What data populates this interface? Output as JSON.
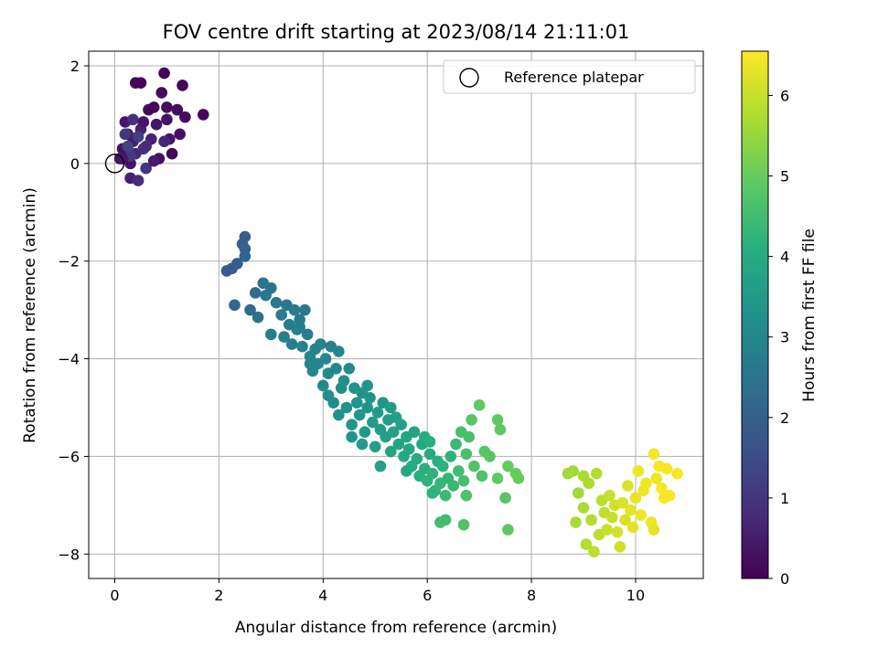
{
  "chart_data": {
    "type": "scatter",
    "title": "FOV centre drift starting at 2023/08/14 21:11:01",
    "xlabel": "Angular distance from reference (arcmin)",
    "ylabel": "Rotation from reference (arcmin)",
    "colorbar_label": "Hours from first FF file",
    "xlim": [
      -0.5,
      11.3
    ],
    "ylim": [
      -8.5,
      2.3
    ],
    "clim": [
      0,
      6.55
    ],
    "x_ticks": [
      0,
      2,
      4,
      6,
      8,
      10
    ],
    "y_ticks": [
      -8,
      -6,
      -4,
      -2,
      0,
      2
    ],
    "c_ticks": [
      0,
      1,
      2,
      3,
      4,
      5,
      6
    ],
    "x_tick_labels": [
      "0",
      "2",
      "4",
      "6",
      "8",
      "10"
    ],
    "y_tick_labels": [
      "−8",
      "−6",
      "−4",
      "−2",
      "0",
      "2"
    ],
    "c_tick_labels": [
      "0",
      "1",
      "2",
      "3",
      "4",
      "5",
      "6"
    ],
    "grid": true,
    "colormap": "viridis",
    "legend": {
      "position": "top-right",
      "entries": [
        {
          "label": "Reference platepar",
          "marker": "open-circle"
        }
      ]
    },
    "reference_point": {
      "x": 0,
      "y": 0
    },
    "points": [
      [
        0.1,
        0.1,
        0.2
      ],
      [
        0.15,
        0.3,
        0.3
      ],
      [
        0.2,
        0.85,
        0.4
      ],
      [
        0.25,
        0.6,
        0.5
      ],
      [
        0.3,
        0.0,
        0.3
      ],
      [
        0.3,
        -0.3,
        0.6
      ],
      [
        0.35,
        0.45,
        0.5
      ],
      [
        0.4,
        1.65,
        0.1
      ],
      [
        0.4,
        0.2,
        0.7
      ],
      [
        0.45,
        -0.35,
        0.8
      ],
      [
        0.5,
        1.65,
        0.1
      ],
      [
        0.5,
        0.7,
        0.6
      ],
      [
        0.55,
        0.3,
        0.9
      ],
      [
        0.6,
        -0.1,
        1.0
      ],
      [
        0.65,
        1.1,
        0.2
      ],
      [
        0.7,
        0.5,
        0.6
      ],
      [
        0.75,
        1.15,
        0.1
      ],
      [
        0.8,
        0.8,
        0.4
      ],
      [
        0.85,
        0.1,
        0.3
      ],
      [
        0.9,
        1.45,
        0.2
      ],
      [
        0.95,
        1.85,
        0.0
      ],
      [
        1.0,
        0.9,
        0.3
      ],
      [
        1.05,
        0.5,
        0.4
      ],
      [
        1.1,
        0.2,
        0.1
      ],
      [
        1.2,
        1.1,
        0.2
      ],
      [
        1.25,
        0.6,
        0.3
      ],
      [
        1.3,
        1.6,
        0.1
      ],
      [
        1.35,
        0.95,
        0.2
      ],
      [
        1.7,
        1.0,
        0.15
      ],
      [
        0.2,
        0.6,
        1.0
      ],
      [
        0.3,
        0.15,
        1.1
      ],
      [
        0.35,
        0.9,
        0.9
      ],
      [
        0.45,
        0.55,
        1.2
      ],
      [
        0.25,
        0.35,
        1.3
      ],
      [
        0.6,
        0.35,
        0.8
      ],
      [
        0.75,
        0.05,
        0.5
      ],
      [
        0.55,
        0.85,
        0.4
      ],
      [
        0.95,
        0.45,
        0.7
      ],
      [
        1.0,
        1.15,
        0.2
      ],
      [
        0.15,
        0.1,
        0.4
      ],
      [
        2.15,
        -2.2,
        1.9
      ],
      [
        2.25,
        -2.15,
        1.9
      ],
      [
        2.35,
        -2.05,
        1.9
      ],
      [
        2.45,
        -1.65,
        2.0
      ],
      [
        2.5,
        -1.5,
        2.0
      ],
      [
        2.5,
        -1.75,
        2.1
      ],
      [
        2.5,
        -1.9,
        2.1
      ],
      [
        2.3,
        -2.9,
        2.2
      ],
      [
        2.6,
        -3.0,
        2.3
      ],
      [
        2.7,
        -2.65,
        2.3
      ],
      [
        2.75,
        -3.15,
        2.4
      ],
      [
        2.85,
        -2.45,
        2.5
      ],
      [
        2.9,
        -2.7,
        2.6
      ],
      [
        3.0,
        -2.55,
        2.5
      ],
      [
        3.0,
        -3.5,
        2.7
      ],
      [
        3.1,
        -2.85,
        2.6
      ],
      [
        3.2,
        -3.1,
        2.7
      ],
      [
        3.25,
        -3.55,
        2.8
      ],
      [
        3.3,
        -2.9,
        2.6
      ],
      [
        3.35,
        -3.3,
        2.7
      ],
      [
        3.4,
        -3.7,
        2.8
      ],
      [
        3.45,
        -3.0,
        2.7
      ],
      [
        3.5,
        -3.4,
        2.8
      ],
      [
        3.55,
        -3.2,
        2.7
      ],
      [
        3.6,
        -3.75,
        2.9
      ],
      [
        3.65,
        -3.0,
        2.6
      ],
      [
        3.7,
        -3.5,
        2.8
      ],
      [
        3.75,
        -3.95,
        3.0
      ],
      [
        3.8,
        -4.25,
        3.0
      ],
      [
        3.85,
        -3.8,
        2.9
      ],
      [
        3.9,
        -4.1,
        3.0
      ],
      [
        3.95,
        -3.7,
        2.9
      ],
      [
        4.0,
        -4.55,
        3.1
      ],
      [
        4.05,
        -4.0,
        3.0
      ],
      [
        4.1,
        -4.3,
        3.1
      ],
      [
        4.15,
        -3.75,
        2.9
      ],
      [
        4.2,
        -4.9,
        3.2
      ],
      [
        4.25,
        -4.2,
        3.1
      ],
      [
        4.3,
        -3.85,
        3.0
      ],
      [
        4.35,
        -4.6,
        3.2
      ],
      [
        4.4,
        -4.45,
        3.2
      ],
      [
        4.45,
        -5.0,
        3.3
      ],
      [
        4.5,
        -4.2,
        3.1
      ],
      [
        4.55,
        -5.35,
        3.4
      ],
      [
        4.6,
        -4.6,
        3.3
      ],
      [
        4.65,
        -4.9,
        3.3
      ],
      [
        4.7,
        -5.15,
        3.4
      ],
      [
        4.75,
        -4.7,
        3.3
      ],
      [
        4.8,
        -5.5,
        3.5
      ],
      [
        4.85,
        -5.0,
        3.4
      ],
      [
        4.9,
        -4.8,
        3.4
      ],
      [
        4.95,
        -5.3,
        3.5
      ],
      [
        5.0,
        -5.8,
        3.6
      ],
      [
        5.05,
        -5.1,
        3.5
      ],
      [
        5.1,
        -5.45,
        3.6
      ],
      [
        5.15,
        -4.9,
        3.4
      ],
      [
        5.2,
        -5.6,
        3.7
      ],
      [
        5.25,
        -5.25,
        3.6
      ],
      [
        5.3,
        -5.9,
        3.8
      ],
      [
        5.35,
        -5.5,
        3.7
      ],
      [
        5.4,
        -5.2,
        3.6
      ],
      [
        5.45,
        -5.75,
        3.8
      ],
      [
        5.5,
        -5.35,
        3.7
      ],
      [
        5.55,
        -6.0,
        3.9
      ],
      [
        5.6,
        -5.6,
        3.8
      ],
      [
        5.65,
        -5.85,
        3.9
      ],
      [
        5.7,
        -6.2,
        4.0
      ],
      [
        5.75,
        -5.5,
        3.8
      ],
      [
        5.8,
        -6.05,
        4.0
      ],
      [
        5.85,
        -6.4,
        4.1
      ],
      [
        5.9,
        -5.75,
        3.9
      ],
      [
        5.95,
        -6.25,
        4.1
      ],
      [
        6.0,
        -6.5,
        4.2
      ],
      [
        6.05,
        -5.95,
        4.0
      ],
      [
        6.1,
        -6.35,
        4.2
      ],
      [
        6.15,
        -6.7,
        4.3
      ],
      [
        6.2,
        -6.1,
        4.1
      ],
      [
        6.25,
        -6.55,
        4.3
      ],
      [
        6.3,
        -6.2,
        4.2
      ],
      [
        6.35,
        -6.8,
        4.4
      ],
      [
        6.4,
        -6.45,
        4.3
      ],
      [
        6.45,
        -6.0,
        4.2
      ],
      [
        6.5,
        -6.6,
        4.4
      ],
      [
        6.55,
        -5.75,
        4.4
      ],
      [
        6.6,
        -6.3,
        4.5
      ],
      [
        6.65,
        -5.5,
        4.6
      ],
      [
        6.7,
        -6.5,
        4.6
      ],
      [
        6.75,
        -5.95,
        4.6
      ],
      [
        6.8,
        -5.6,
        4.6
      ],
      [
        6.85,
        -5.25,
        4.8
      ],
      [
        7.0,
        -4.95,
        4.9
      ],
      [
        6.9,
        -6.2,
        4.7
      ],
      [
        7.05,
        -6.4,
        4.7
      ],
      [
        7.1,
        -5.9,
        4.8
      ],
      [
        7.2,
        -6.0,
        4.8
      ],
      [
        7.35,
        -5.25,
        4.9
      ],
      [
        7.4,
        -5.45,
        4.9
      ],
      [
        7.35,
        -6.45,
        4.9
      ],
      [
        7.5,
        -6.85,
        4.8
      ],
      [
        7.55,
        -7.5,
        4.9
      ],
      [
        7.55,
        -6.2,
        5.0
      ],
      [
        7.7,
        -6.35,
        5.0
      ],
      [
        7.75,
        -6.45,
        5.0
      ],
      [
        6.25,
        -7.35,
        4.5
      ],
      [
        6.35,
        -7.3,
        4.5
      ],
      [
        6.7,
        -7.4,
        4.7
      ],
      [
        6.75,
        -6.8,
        4.7
      ],
      [
        6.1,
        -6.75,
        4.2
      ],
      [
        5.95,
        -5.6,
        4.0
      ],
      [
        6.05,
        -5.7,
        4.1
      ],
      [
        4.1,
        -4.75,
        3.2
      ],
      [
        4.3,
        -5.15,
        3.3
      ],
      [
        4.55,
        -5.6,
        3.4
      ],
      [
        4.75,
        -5.75,
        3.5
      ],
      [
        5.1,
        -6.2,
        3.7
      ],
      [
        3.55,
        -3.35,
        2.8
      ],
      [
        3.75,
        -4.1,
        2.95
      ],
      [
        4.85,
        -4.55,
        3.35
      ],
      [
        5.3,
        -5.0,
        3.55
      ],
      [
        5.6,
        -6.3,
        3.9
      ],
      [
        8.7,
        -6.35,
        5.6
      ],
      [
        8.8,
        -6.3,
        5.6
      ],
      [
        8.85,
        -7.35,
        5.7
      ],
      [
        8.9,
        -6.75,
        5.6
      ],
      [
        9.0,
        -7.05,
        5.7
      ],
      [
        9.05,
        -7.8,
        5.8
      ],
      [
        9.1,
        -6.55,
        5.7
      ],
      [
        9.15,
        -7.3,
        5.8
      ],
      [
        9.2,
        -7.95,
        5.9
      ],
      [
        9.25,
        -6.35,
        5.8
      ],
      [
        9.3,
        -7.6,
        5.9
      ],
      [
        9.35,
        -6.9,
        5.9
      ],
      [
        9.4,
        -7.15,
        5.9
      ],
      [
        9.45,
        -7.5,
        6.0
      ],
      [
        9.5,
        -6.8,
        6.0
      ],
      [
        9.55,
        -7.25,
        6.0
      ],
      [
        9.6,
        -7.0,
        6.1
      ],
      [
        9.65,
        -7.55,
        6.1
      ],
      [
        9.7,
        -7.85,
        6.1
      ],
      [
        9.75,
        -6.95,
        6.2
      ],
      [
        9.8,
        -7.3,
        6.2
      ],
      [
        9.85,
        -6.6,
        6.2
      ],
      [
        9.9,
        -7.1,
        6.3
      ],
      [
        9.95,
        -7.45,
        6.3
      ],
      [
        10.0,
        -6.85,
        6.3
      ],
      [
        10.05,
        -6.3,
        6.4
      ],
      [
        10.1,
        -7.2,
        6.4
      ],
      [
        10.15,
        -6.7,
        6.4
      ],
      [
        10.2,
        -6.55,
        6.4
      ],
      [
        10.3,
        -7.35,
        6.4
      ],
      [
        10.35,
        -5.95,
        6.5
      ],
      [
        10.4,
        -6.45,
        6.4
      ],
      [
        10.45,
        -6.2,
        6.5
      ],
      [
        10.5,
        -6.65,
        6.5
      ],
      [
        10.55,
        -6.85,
        6.5
      ],
      [
        10.6,
        -6.25,
        6.5
      ],
      [
        10.65,
        -6.8,
        6.5
      ],
      [
        10.8,
        -6.35,
        6.5
      ],
      [
        10.35,
        -7.5,
        6.3
      ],
      [
        9.0,
        -6.4,
        5.7
      ]
    ]
  }
}
